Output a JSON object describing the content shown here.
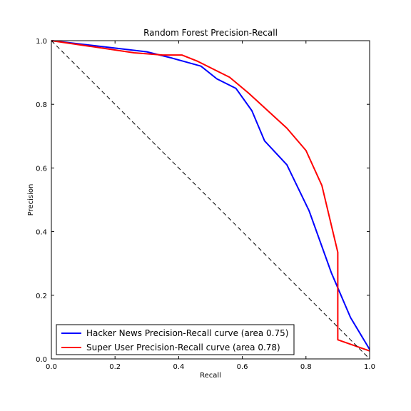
{
  "chart_data": {
    "type": "line",
    "title": "Random Forest Precision-Recall",
    "xlabel": "Recall",
    "ylabel": "Precision",
    "xlim": [
      0.0,
      1.0
    ],
    "ylim": [
      0.0,
      1.0
    ],
    "xticks": [
      "0.0",
      "0.2",
      "0.4",
      "0.6",
      "0.8",
      "1.0"
    ],
    "yticks": [
      "0.0",
      "0.2",
      "0.4",
      "0.6",
      "0.8",
      "1.0"
    ],
    "grid": false,
    "legend_position": "lower-left",
    "series": [
      {
        "name": "Hacker News Precision-Recall curve (area 0.75)",
        "color": "#0000ff",
        "x": [
          0.0,
          0.3,
          0.38,
          0.47,
          0.52,
          0.58,
          0.63,
          0.67,
          0.74,
          0.81,
          0.88,
          0.94,
          1.0
        ],
        "y": [
          1.0,
          0.965,
          0.945,
          0.92,
          0.88,
          0.85,
          0.78,
          0.685,
          0.61,
          0.465,
          0.27,
          0.13,
          0.03
        ]
      },
      {
        "name": "Super User Precision-Recall curve (area 0.78)",
        "color": "#ff0000",
        "x": [
          0.0,
          0.26,
          0.35,
          0.41,
          0.46,
          0.52,
          0.56,
          0.62,
          0.68,
          0.74,
          0.8,
          0.85,
          0.9,
          0.9,
          0.9,
          1.0
        ],
        "y": [
          1.0,
          0.962,
          0.955,
          0.955,
          0.935,
          0.905,
          0.885,
          0.835,
          0.78,
          0.725,
          0.655,
          0.545,
          0.335,
          0.2,
          0.06,
          0.025
        ]
      },
      {
        "name": "",
        "color": "#000000",
        "style": "dashed",
        "x": [
          0.0,
          1.0
        ],
        "y": [
          1.0,
          0.0
        ]
      }
    ]
  }
}
